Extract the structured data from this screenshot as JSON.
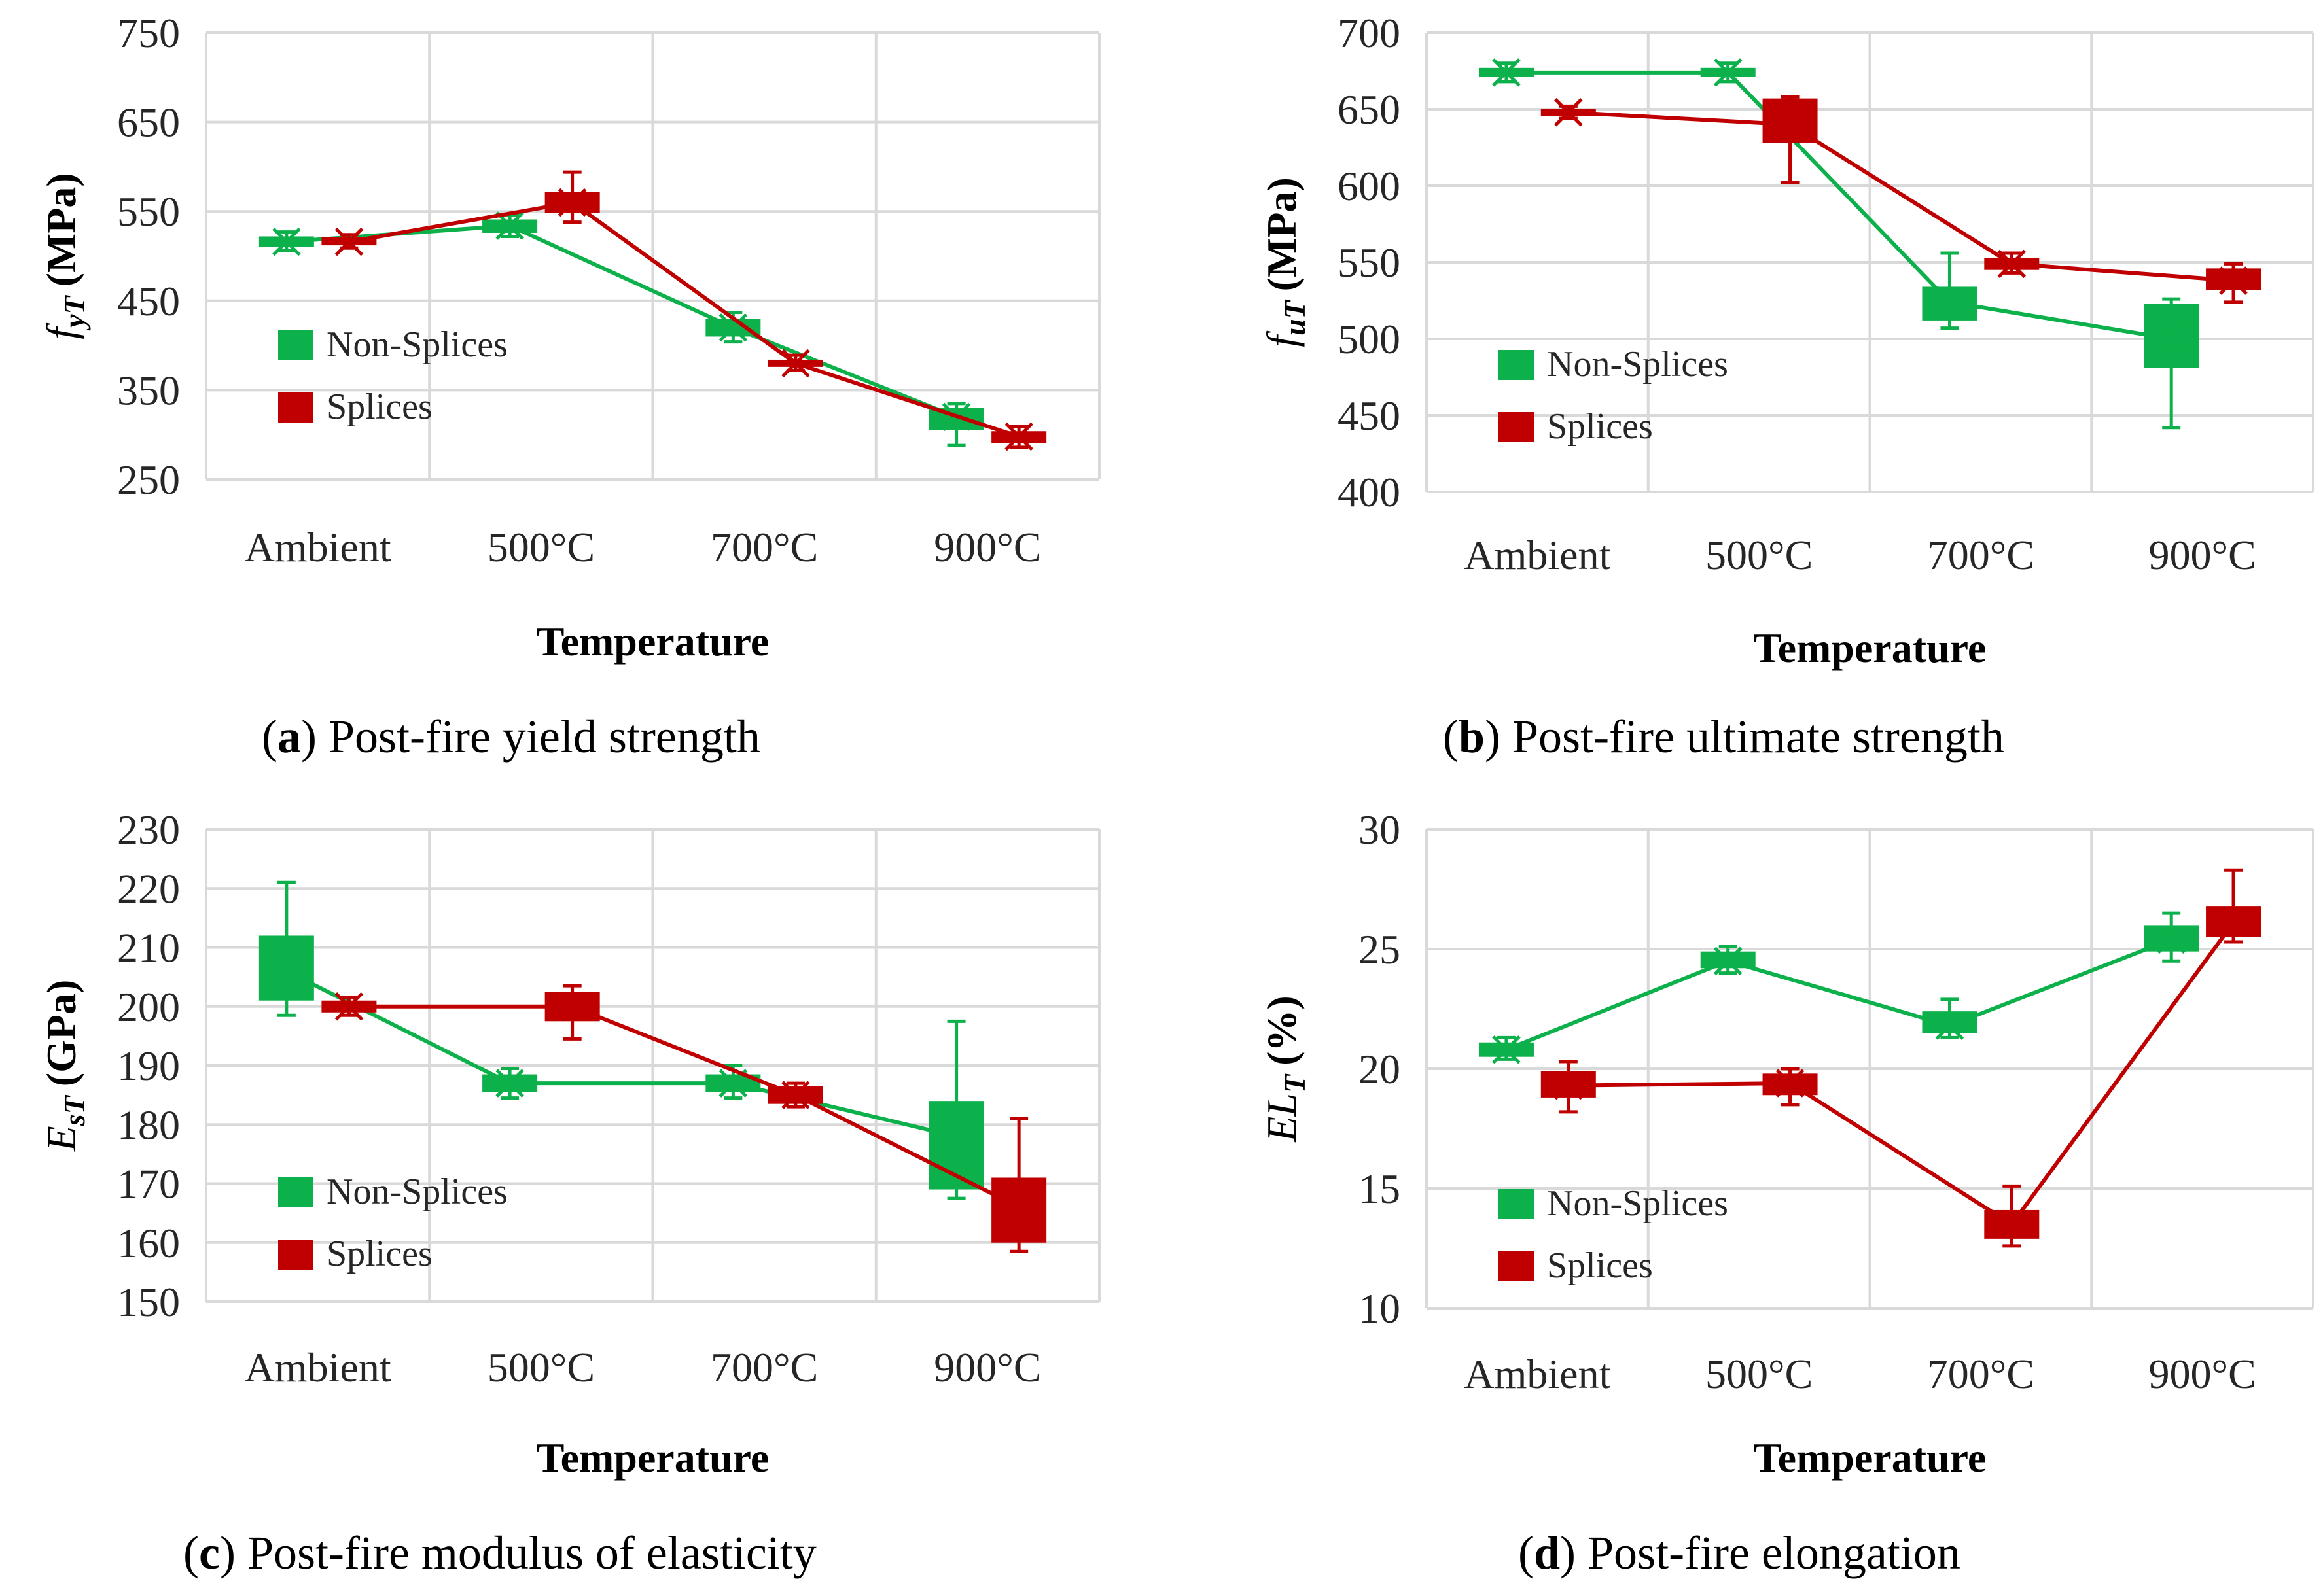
{
  "colors": {
    "non_splices": "#0db14b",
    "splices": "#c00000",
    "grid": "#d9d9d9"
  },
  "chart_data": [
    {
      "type": "line",
      "id": "a",
      "caption": {
        "letter": "a",
        "text": "Post-fire yield strength"
      },
      "xlabel": "Temperature",
      "ylabel_main": "f",
      "ylabel_sub": "yT",
      "ylabel_unit": "(MPa)",
      "categories": [
        "Ambient",
        "500°C",
        "700°C",
        "900°C"
      ],
      "ylim": [
        250,
        750
      ],
      "yticks": [
        "250",
        "350",
        "450",
        "550",
        "650",
        "750"
      ],
      "grid": true,
      "legend_position": "left",
      "series": [
        {
          "name": "Non-Splices",
          "color_key": "non_splices",
          "values": [
            516,
            534,
            420,
            320
          ],
          "box": [
            [
              510,
              522
            ],
            [
              526,
              541
            ],
            [
              410,
              430
            ],
            [
              305,
              330
            ]
          ],
          "whisker": [
            [
              506,
              527
            ],
            [
              522,
              546
            ],
            [
              404,
              437
            ],
            [
              288,
              335
            ]
          ]
        },
        {
          "name": "Splices",
          "color_key": "splices",
          "values": [
            516,
            560,
            380,
            298
          ],
          "box": [
            [
              512,
              521
            ],
            [
              548,
              572
            ],
            [
              376,
              384
            ],
            [
              291,
              304
            ]
          ],
          "whisker": [
            [
              509,
              524
            ],
            [
              538,
              594
            ],
            [
              372,
              389
            ],
            [
              286,
              309
            ]
          ]
        }
      ]
    },
    {
      "type": "line",
      "id": "b",
      "caption": {
        "letter": "b",
        "text": "Post-fire ultimate strength"
      },
      "xlabel": "Temperature",
      "ylabel_main": "f",
      "ylabel_sub": "uT",
      "ylabel_unit": "(MPa)",
      "categories": [
        "Ambient",
        "500°C",
        "700°C",
        "900°C"
      ],
      "ylim": [
        400,
        700
      ],
      "yticks": [
        "400",
        "450",
        "500",
        "550",
        "600",
        "650",
        "700"
      ],
      "grid": true,
      "legend_position": "left",
      "series": [
        {
          "name": "Non-Splices",
          "color_key": "non_splices",
          "values": [
            674,
            674,
            524,
            500
          ],
          "box": [
            [
              671,
              677
            ],
            [
              671,
              677
            ],
            [
              512,
              534
            ],
            [
              481,
              523
            ]
          ],
          "whisker": [
            [
              668,
              680
            ],
            [
              668,
              680
            ],
            [
              507,
              556
            ],
            [
              442,
              526
            ]
          ]
        },
        {
          "name": "Splices",
          "color_key": "splices",
          "values": [
            648,
            640,
            549,
            538
          ],
          "box": [
            [
              646,
              650
            ],
            [
              628,
              657
            ],
            [
              545,
              553
            ],
            [
              532,
              546
            ]
          ],
          "whisker": [
            [
              644,
              652
            ],
            [
              602,
              658
            ],
            [
              543,
              556
            ],
            [
              524,
              549
            ]
          ]
        }
      ]
    },
    {
      "type": "line",
      "id": "c",
      "caption": {
        "letter": "c",
        "text": "Post-fire modulus of elasticity"
      },
      "xlabel": "Temperature",
      "ylabel_main": "E",
      "ylabel_sub": "sT",
      "ylabel_unit": "(GPa)",
      "categories": [
        "Ambient",
        "500°C",
        "700°C",
        "900°C"
      ],
      "ylim": [
        150,
        230
      ],
      "yticks": [
        "150",
        "160",
        "170",
        "180",
        "190",
        "200",
        "210",
        "220",
        "230"
      ],
      "grid": true,
      "legend_position": "left",
      "series": [
        {
          "name": "Non-Splices",
          "color_key": "non_splices",
          "values": [
            206,
            187,
            187,
            178
          ],
          "box": [
            [
              201,
              212
            ],
            [
              185.5,
              188.5
            ],
            [
              185.5,
              188.5
            ],
            [
              169,
              184
            ]
          ],
          "whisker": [
            [
              198.5,
              221
            ],
            [
              184.5,
              189.5
            ],
            [
              184.5,
              190
            ],
            [
              167.5,
              197.5
            ]
          ]
        },
        {
          "name": "Splices",
          "color_key": "splices",
          "values": [
            200,
            200,
            185,
            166
          ],
          "box": [
            [
              199,
              201
            ],
            [
              197.5,
              202.5
            ],
            [
              183.5,
              186.5
            ],
            [
              160,
              171
            ]
          ],
          "whisker": [
            [
              198.5,
              201.5
            ],
            [
              194.5,
              203.5
            ],
            [
              183,
              187
            ],
            [
              158.5,
              181
            ]
          ]
        }
      ]
    },
    {
      "type": "line",
      "id": "d",
      "caption": {
        "letter": "d",
        "text": "Post-fire elongation"
      },
      "xlabel": "Temperature",
      "ylabel_main": "EL",
      "ylabel_sub": "T",
      "ylabel_unit": "(%)",
      "categories": [
        "Ambient",
        "500°C",
        "700°C",
        "900°C"
      ],
      "ylim": [
        10,
        30
      ],
      "yticks": [
        "10",
        "15",
        "20",
        "25",
        "30"
      ],
      "grid": true,
      "legend_position": "left",
      "series": [
        {
          "name": "Non-Splices",
          "color_key": "non_splices",
          "values": [
            20.8,
            24.5,
            21.8,
            25.4
          ],
          "box": [
            [
              20.5,
              21.1
            ],
            [
              24.2,
              24.9
            ],
            [
              21.5,
              22.4
            ],
            [
              24.9,
              26.0
            ]
          ],
          "whisker": [
            [
              20.4,
              21.3
            ],
            [
              24.0,
              25.1
            ],
            [
              21.3,
              22.9
            ],
            [
              24.5,
              26.5
            ]
          ]
        },
        {
          "name": "Splices",
          "color_key": "splices",
          "values": [
            19.3,
            19.4,
            13.5,
            26.1
          ],
          "box": [
            [
              18.8,
              19.9
            ],
            [
              18.9,
              19.8
            ],
            [
              12.9,
              14.1
            ],
            [
              25.5,
              26.8
            ]
          ],
          "whisker": [
            [
              18.2,
              20.3
            ],
            [
              18.5,
              20.0
            ],
            [
              12.6,
              15.1
            ],
            [
              25.3,
              28.3
            ]
          ]
        }
      ]
    }
  ]
}
